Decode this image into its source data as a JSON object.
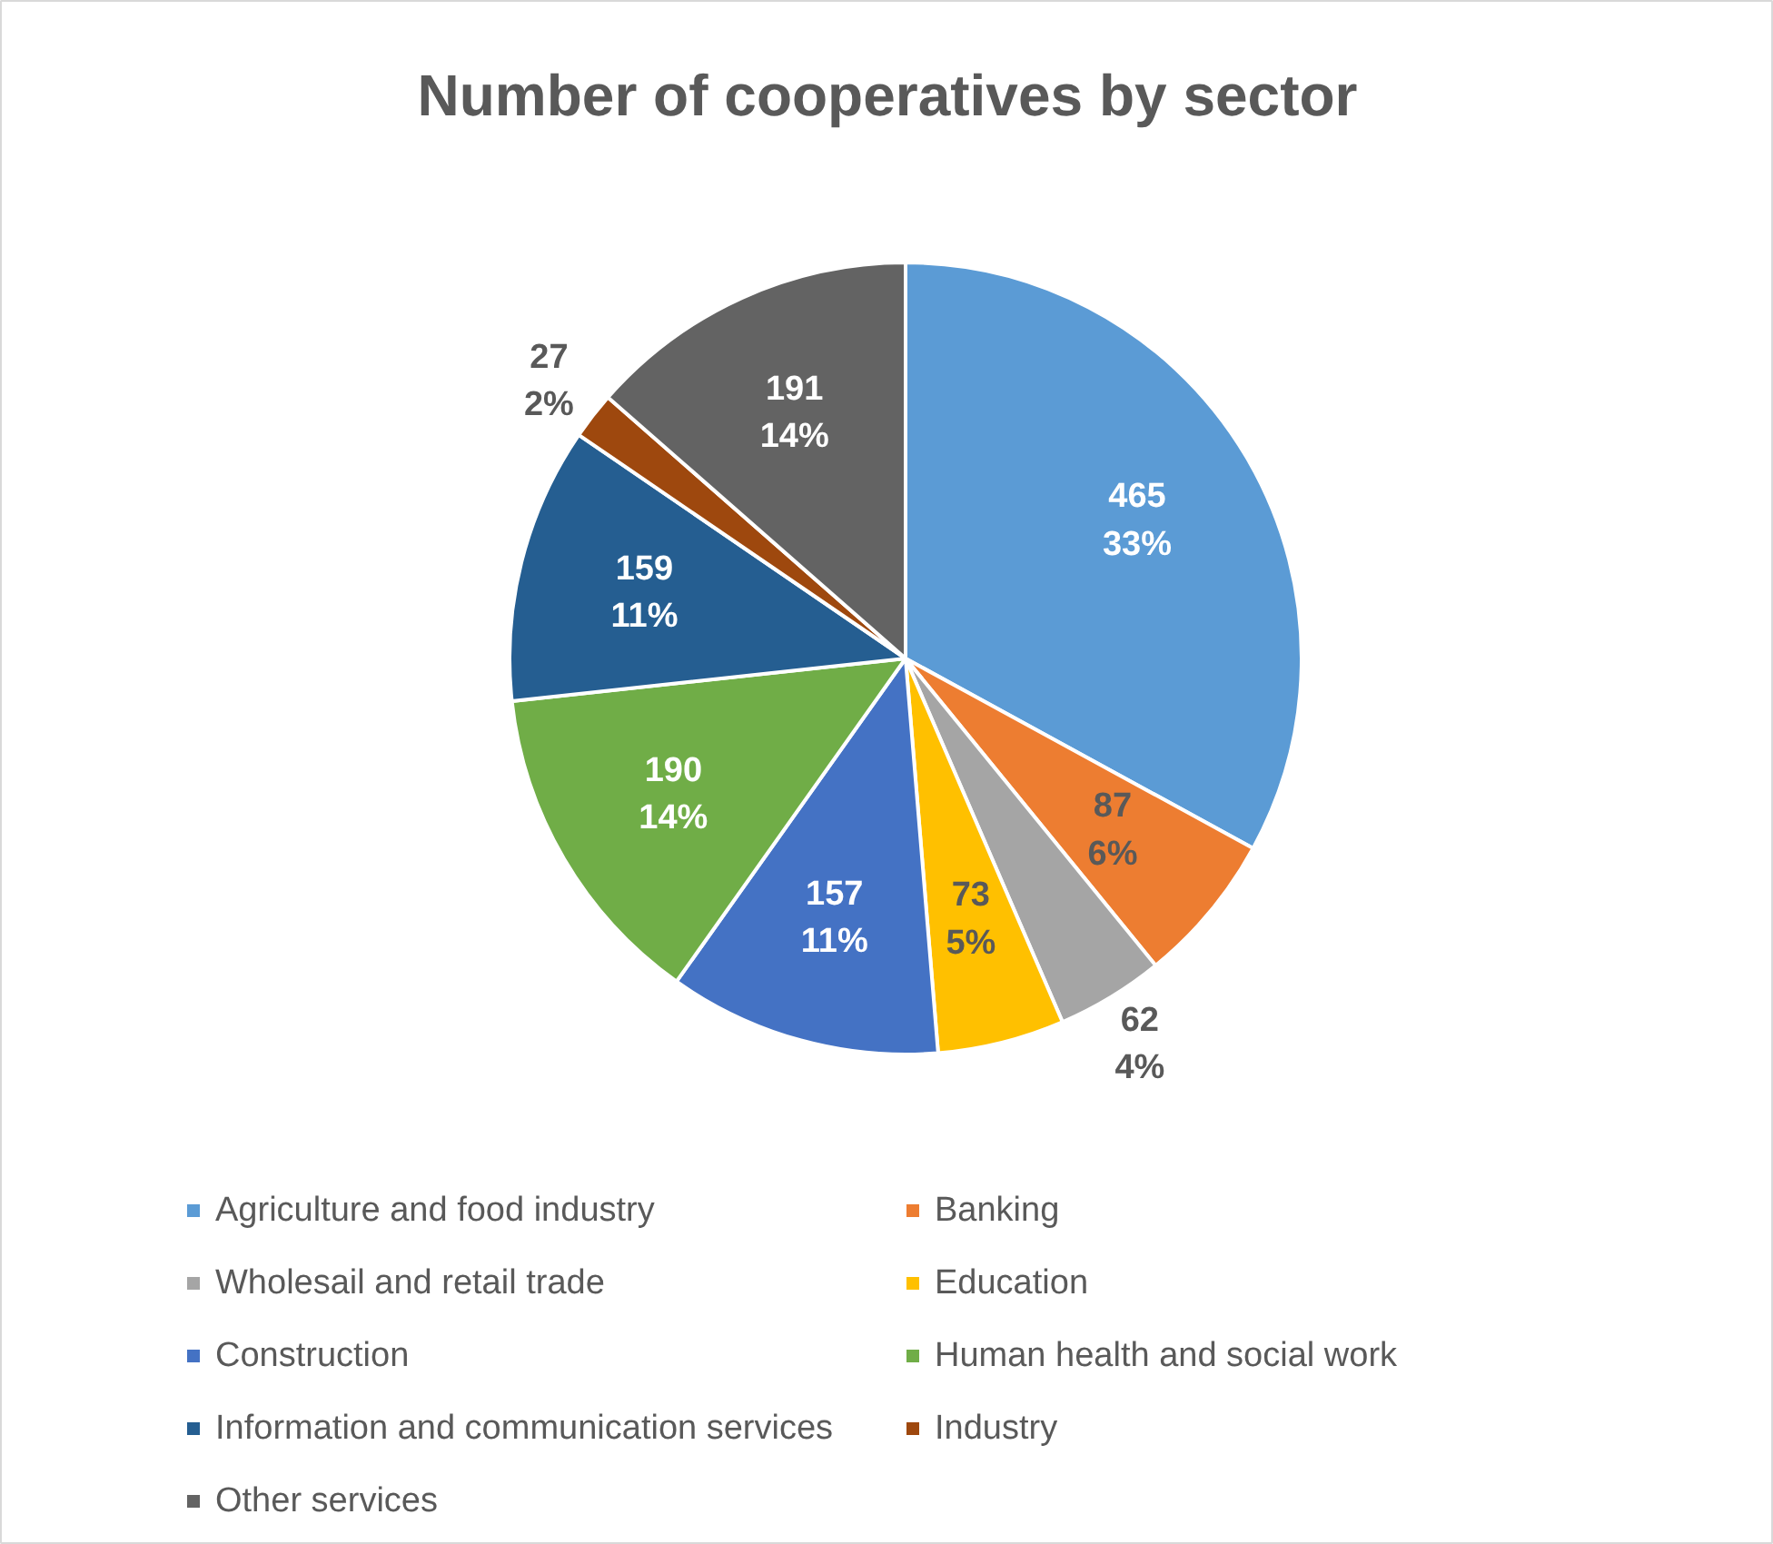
{
  "chart_data": {
    "type": "pie",
    "title": "Number of cooperatives by sector",
    "categories": [
      "Agriculture and food industry",
      "Banking",
      "Wholesail and retail trade",
      "Education",
      "Construction",
      "Human health and social work",
      "Information and communication services",
      "Industry",
      "Other services"
    ],
    "values": [
      465,
      87,
      62,
      73,
      157,
      190,
      159,
      27,
      191
    ],
    "colors": [
      "#5b9bd5",
      "#ed7d31",
      "#a5a5a5",
      "#ffc000",
      "#4472c4",
      "#70ad47",
      "#255e91",
      "#9e480e",
      "#636363"
    ],
    "value_labels": [
      "465\n33%",
      "87\n6%",
      "62\n4%",
      "73\n5%",
      "157\n11%",
      "190\n14%",
      "159\n11%",
      "27\n2%",
      "191\n14%"
    ],
    "legend": "bottom"
  }
}
